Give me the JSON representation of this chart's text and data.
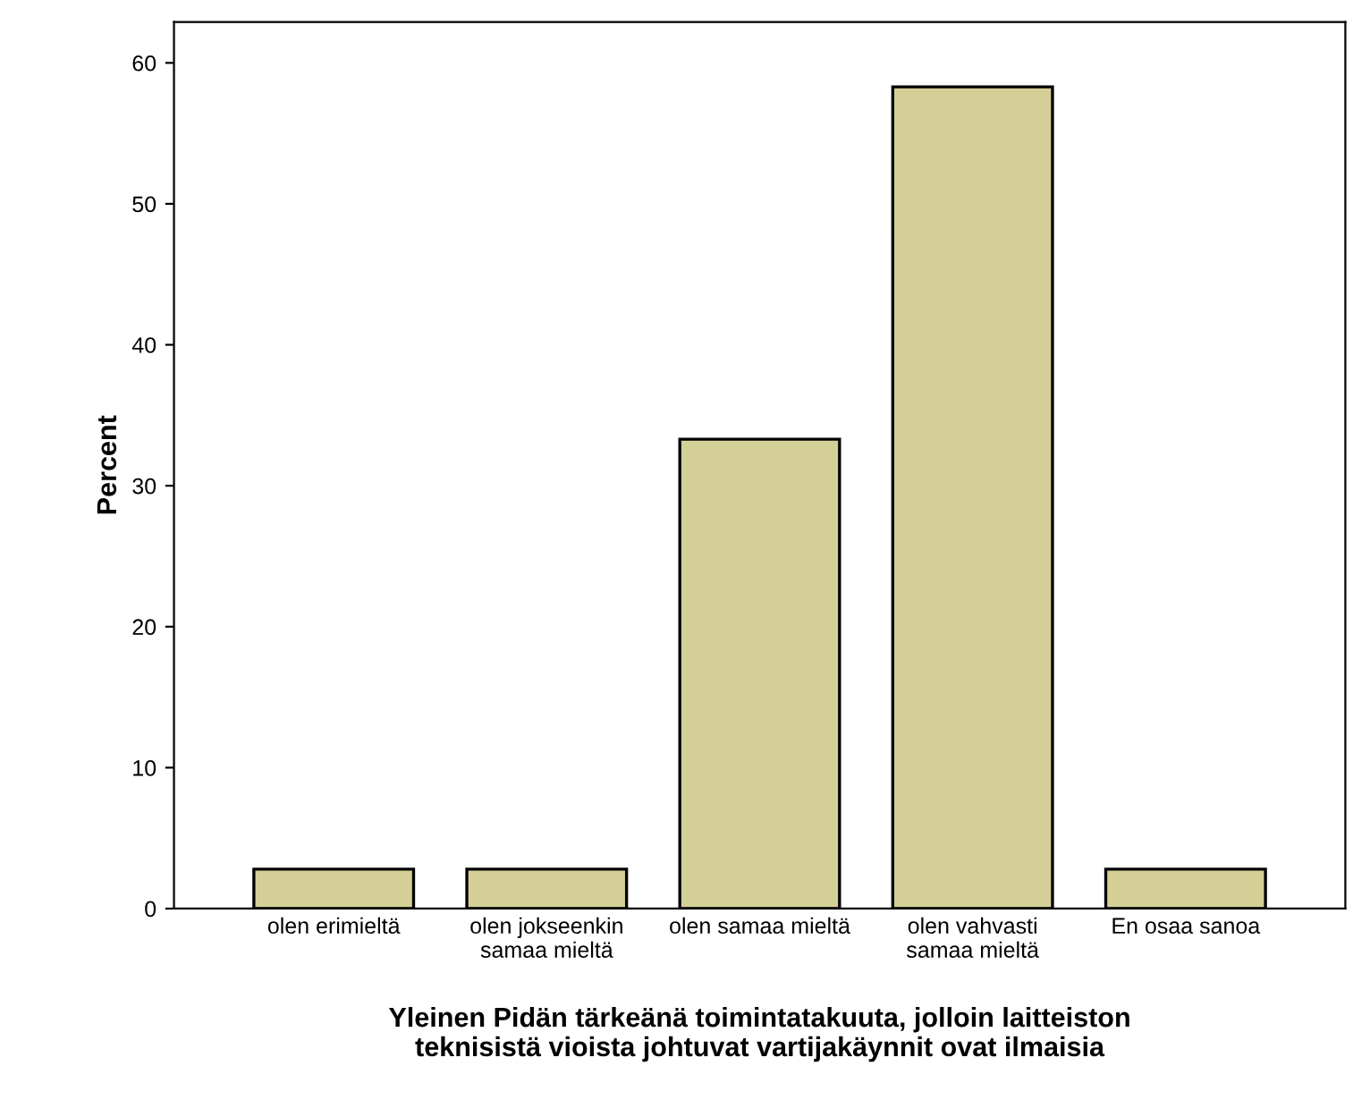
{
  "chart_data": {
    "type": "bar",
    "xlabel": "Yleinen Pidän tärkeänä toimintatakuuta, jolloin laitteiston\nteknisistä vioista johtuvat vartijakäynnit ovat ilmaisia",
    "ylabel": "Percent",
    "categories": [
      "olen erimieltä",
      "olen jokseenkin\nsamaa mieltä",
      "olen samaa mieltä",
      "olen vahvasti\nsamaa mieltä",
      "En osaa sanoa"
    ],
    "values": [
      2.8,
      2.8,
      33.3,
      58.3,
      2.8
    ],
    "color": "#d3cf97",
    "ylim": [
      0,
      62.9
    ],
    "yticks": [
      0,
      10,
      20,
      30,
      40,
      50,
      60
    ],
    "grid": false,
    "legend": false
  }
}
